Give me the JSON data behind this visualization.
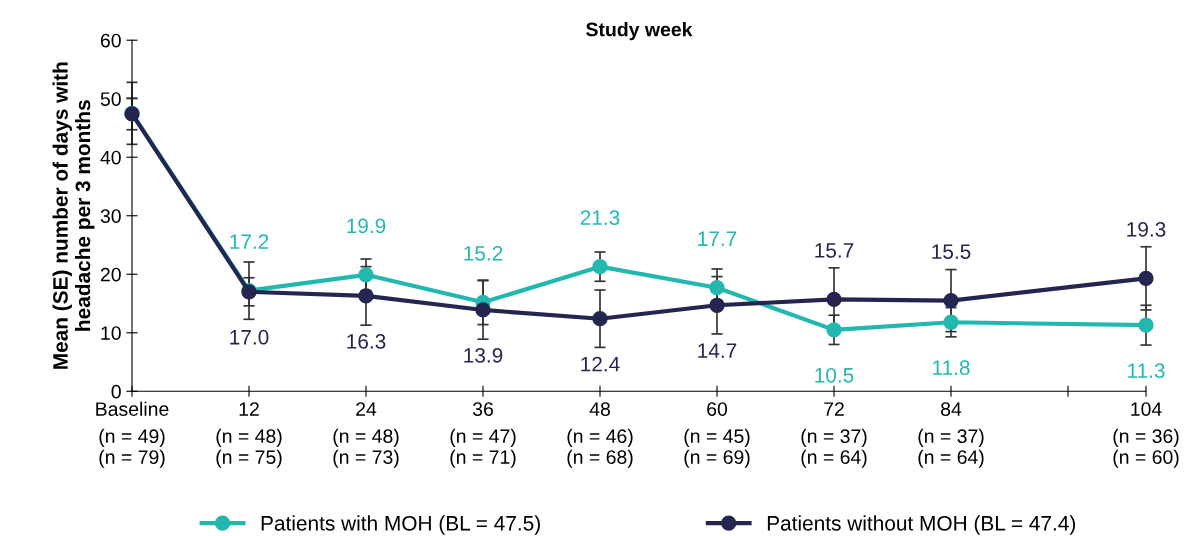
{
  "chart_data": {
    "type": "line",
    "title": "Study week",
    "ylabel": "Mean (SE) number of days with\nheadache per 3 months",
    "x": [
      0,
      12,
      24,
      36,
      48,
      60,
      72,
      84,
      104
    ],
    "xlim": [
      0,
      104
    ],
    "xticks": [
      {
        "value": 0,
        "label": "Baseline"
      },
      12,
      24,
      36,
      48,
      60,
      72,
      84,
      {
        "value": 96,
        "label": null
      },
      104
    ],
    "annotations": [
      "(n = 49)\n(n = 79)",
      "(n = 48)\n(n = 75)",
      "(n = 48)\n(n = 73)",
      "(n = 47)\n(n = 71)",
      "(n = 46)\n(n = 68)",
      "(n = 45)\n(n = 69)",
      "(n = 37)\n(n = 64)",
      "(n = 37)\n(n = 64)",
      "(n = 36)\n(n = 60)"
    ],
    "ylim": [
      0,
      60
    ],
    "yticks": [
      0,
      10,
      20,
      30,
      40,
      50,
      60
    ],
    "marker": "circle",
    "line_style": "solid",
    "grid": false,
    "legend": "bottom",
    "series": [
      {
        "name": "Patients with MOH (BL = 47.5)",
        "color": "#22b8b0",
        "values": [
          47.5,
          17.2,
          19.9,
          15.2,
          21.3,
          17.7,
          10.5,
          11.8,
          11.3
        ],
        "errors": [
          5.3,
          4.9,
          2.7,
          3.8,
          2.5,
          3.2,
          2.5,
          2.5,
          3.4
        ],
        "value_labels": [
          null,
          "17.2",
          "19.9",
          "15.2",
          "21.3",
          "17.7",
          "10.5",
          "11.8",
          "11.3"
        ]
      },
      {
        "name": "Patients without MOH (BL = 47.4)",
        "color": "#24264f",
        "values": [
          47.4,
          17.0,
          16.3,
          13.9,
          12.4,
          14.7,
          15.7,
          15.5,
          19.3
        ],
        "errors": [
          2.7,
          2.4,
          5.0,
          5.0,
          4.9,
          4.9,
          5.4,
          5.3,
          5.4
        ],
        "value_labels": [
          null,
          "17.0",
          "16.3",
          "13.9",
          "12.4",
          "14.7",
          "15.7",
          "15.5",
          "19.3"
        ]
      }
    ]
  }
}
